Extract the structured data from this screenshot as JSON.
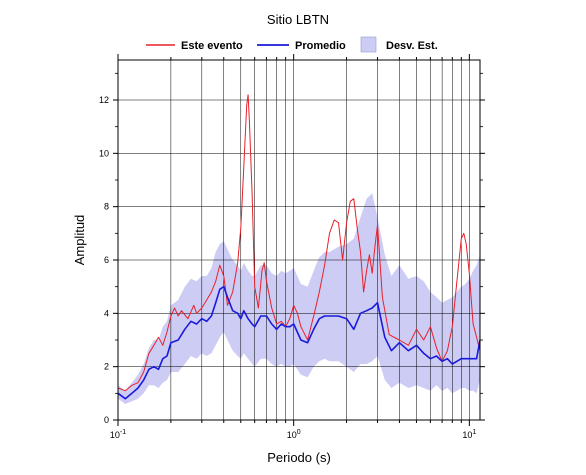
{
  "chart_data": {
    "type": "line",
    "title": "Sitio LBTN",
    "xlabel": "Periodo (s)",
    "ylabel": "Amplitud",
    "xscale": "log",
    "xlim": [
      0.1,
      11.5
    ],
    "ylim": [
      0,
      13.5
    ],
    "grid": true,
    "legend_position": "top",
    "x_tick_labels": [
      {
        "value": 0.1,
        "base": "10",
        "exp": "-1"
      },
      {
        "value": 1,
        "base": "10",
        "exp": "0"
      },
      {
        "value": 10,
        "base": "10",
        "exp": "1"
      }
    ],
    "y_ticks": [
      0,
      2,
      4,
      6,
      8,
      10,
      12
    ],
    "series": [
      {
        "name": "Este evento",
        "kind": "line",
        "color": "#e8202a",
        "x": [
          0.1,
          0.11,
          0.12,
          0.13,
          0.14,
          0.15,
          0.16,
          0.17,
          0.18,
          0.19,
          0.2,
          0.21,
          0.22,
          0.23,
          0.25,
          0.27,
          0.28,
          0.3,
          0.32,
          0.34,
          0.36,
          0.38,
          0.4,
          0.42,
          0.45,
          0.48,
          0.5,
          0.52,
          0.54,
          0.55,
          0.56,
          0.58,
          0.6,
          0.63,
          0.66,
          0.68,
          0.7,
          0.75,
          0.8,
          0.85,
          0.9,
          0.95,
          1.0,
          1.05,
          1.1,
          1.2,
          1.3,
          1.4,
          1.5,
          1.6,
          1.7,
          1.8,
          1.9,
          2.0,
          2.1,
          2.2,
          2.3,
          2.4,
          2.5,
          2.6,
          2.7,
          2.8,
          2.9,
          3.0,
          3.2,
          3.5,
          4.0,
          4.5,
          5.0,
          5.5,
          6.0,
          6.5,
          7.0,
          7.5,
          8.0,
          8.5,
          9.0,
          9.3,
          9.6,
          10.0,
          10.5,
          11.0,
          11.5
        ],
        "y": [
          1.2,
          1.1,
          1.3,
          1.4,
          1.8,
          2.5,
          2.8,
          3.1,
          2.8,
          3.3,
          3.9,
          4.2,
          3.9,
          4.1,
          3.8,
          4.3,
          4.0,
          4.2,
          4.5,
          4.8,
          5.2,
          5.8,
          5.4,
          4.3,
          4.8,
          5.9,
          7.2,
          9.5,
          11.8,
          12.2,
          11.2,
          8.5,
          5.0,
          4.2,
          5.6,
          5.9,
          5.2,
          4.2,
          3.6,
          3.7,
          3.5,
          3.8,
          4.3,
          4.0,
          3.5,
          3.0,
          3.9,
          4.8,
          5.8,
          7.0,
          7.5,
          7.4,
          6.0,
          7.4,
          8.2,
          8.3,
          7.2,
          6.3,
          4.8,
          5.6,
          6.2,
          5.5,
          6.5,
          7.3,
          4.6,
          3.2,
          3.0,
          2.8,
          3.4,
          3.0,
          3.5,
          2.7,
          2.2,
          2.6,
          3.5,
          5.2,
          6.8,
          7.0,
          6.6,
          5.5,
          3.6,
          3.1,
          2.6
        ]
      },
      {
        "name": "Promedio",
        "kind": "line",
        "color": "#1a1adc",
        "x": [
          0.1,
          0.11,
          0.12,
          0.13,
          0.14,
          0.15,
          0.16,
          0.17,
          0.18,
          0.19,
          0.2,
          0.22,
          0.24,
          0.26,
          0.28,
          0.3,
          0.32,
          0.34,
          0.36,
          0.38,
          0.4,
          0.42,
          0.45,
          0.48,
          0.5,
          0.52,
          0.55,
          0.58,
          0.6,
          0.65,
          0.7,
          0.75,
          0.8,
          0.85,
          0.9,
          0.95,
          1.0,
          1.1,
          1.2,
          1.3,
          1.4,
          1.5,
          1.6,
          1.8,
          2.0,
          2.2,
          2.4,
          2.6,
          2.8,
          3.0,
          3.3,
          3.6,
          4.0,
          4.5,
          5.0,
          5.5,
          6.0,
          6.5,
          7.0,
          7.5,
          8.0,
          8.5,
          9.0,
          9.5,
          10.0,
          10.5,
          11.0,
          11.5
        ],
        "y": [
          1.0,
          0.8,
          1.0,
          1.2,
          1.5,
          1.9,
          2.0,
          1.9,
          2.3,
          2.4,
          2.9,
          3.0,
          3.4,
          3.7,
          3.6,
          3.8,
          3.7,
          3.9,
          4.4,
          4.9,
          5.0,
          4.6,
          4.1,
          4.0,
          3.8,
          4.1,
          3.8,
          3.6,
          3.5,
          3.9,
          3.9,
          3.6,
          3.4,
          3.6,
          3.5,
          3.5,
          3.6,
          3.0,
          2.9,
          3.4,
          3.8,
          3.9,
          3.9,
          3.9,
          3.8,
          3.4,
          4.0,
          4.1,
          4.2,
          4.4,
          3.1,
          2.6,
          2.9,
          2.6,
          2.8,
          2.5,
          2.3,
          2.4,
          2.2,
          2.3,
          2.1,
          2.2,
          2.3,
          2.3,
          2.3,
          2.3,
          2.3,
          3.0
        ]
      },
      {
        "name": "Desv. Est.",
        "kind": "band",
        "color": "#ccccf5",
        "x": [
          0.1,
          0.11,
          0.12,
          0.13,
          0.14,
          0.15,
          0.16,
          0.17,
          0.18,
          0.19,
          0.2,
          0.22,
          0.24,
          0.26,
          0.28,
          0.3,
          0.32,
          0.34,
          0.36,
          0.38,
          0.4,
          0.42,
          0.45,
          0.48,
          0.5,
          0.52,
          0.55,
          0.58,
          0.6,
          0.65,
          0.7,
          0.75,
          0.8,
          0.85,
          0.9,
          0.95,
          1.0,
          1.1,
          1.2,
          1.3,
          1.4,
          1.5,
          1.6,
          1.8,
          2.0,
          2.2,
          2.4,
          2.6,
          2.8,
          3.0,
          3.3,
          3.6,
          4.0,
          4.5,
          5.0,
          5.5,
          6.0,
          6.5,
          7.0,
          7.5,
          8.0,
          8.5,
          9.0,
          9.5,
          10.0,
          10.5,
          11.0,
          11.5
        ],
        "upper": [
          1.3,
          1.1,
          1.4,
          1.7,
          2.1,
          2.7,
          3.0,
          3.0,
          3.5,
          3.7,
          4.3,
          4.5,
          5.0,
          5.3,
          5.2,
          5.4,
          5.4,
          5.7,
          6.3,
          6.6,
          6.7,
          6.4,
          6.0,
          5.8,
          5.6,
          5.9,
          5.6,
          5.4,
          5.4,
          5.8,
          5.8,
          5.5,
          5.4,
          5.6,
          5.5,
          5.6,
          5.7,
          5.1,
          5.0,
          5.6,
          6.1,
          6.3,
          6.3,
          6.5,
          6.6,
          6.8,
          7.6,
          8.3,
          8.5,
          7.6,
          6.2,
          5.4,
          5.8,
          5.3,
          5.4,
          5.2,
          4.8,
          4.6,
          4.4,
          4.5,
          4.6,
          4.8,
          5.0,
          5.1,
          5.3,
          5.6,
          5.8,
          6.2
        ],
        "lower": [
          0.8,
          0.6,
          0.7,
          0.8,
          1.0,
          1.3,
          1.3,
          1.2,
          1.4,
          1.5,
          1.8,
          1.8,
          2.1,
          2.4,
          2.3,
          2.5,
          2.4,
          2.5,
          2.8,
          3.1,
          3.3,
          3.0,
          2.6,
          2.4,
          2.3,
          2.5,
          2.3,
          2.1,
          2.0,
          2.3,
          2.3,
          2.1,
          2.0,
          2.1,
          2.0,
          2.0,
          2.1,
          1.7,
          1.6,
          2.0,
          2.2,
          2.3,
          2.2,
          2.2,
          2.0,
          1.8,
          2.1,
          2.1,
          2.2,
          2.4,
          1.5,
          1.2,
          1.4,
          1.2,
          1.3,
          1.2,
          1.1,
          1.3,
          1.1,
          1.2,
          1.0,
          1.1,
          1.2,
          1.2,
          1.1,
          1.1,
          1.0,
          1.5
        ]
      }
    ]
  }
}
